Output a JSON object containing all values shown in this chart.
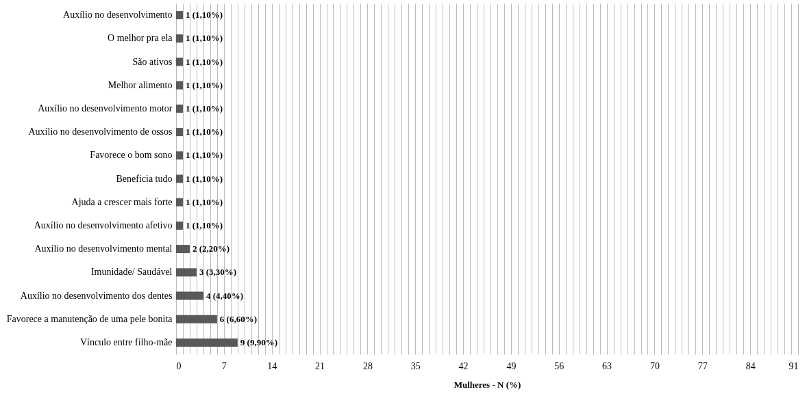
{
  "chart_data": {
    "type": "bar",
    "orientation": "horizontal",
    "xlabel": "Mulheres - N (%)",
    "categories": [
      "Auxílio no desenvolvimento",
      "O melhor pra ela",
      "São ativos",
      "Melhor alimento",
      "Auxílio no desenvolvimento motor",
      "Auxílio no desenvolvimento  de ossos",
      "Favorece o bom sono",
      "Beneficia tudo",
      "Ajuda a crescer mais forte",
      "Auxílio no desenvolvimento  afetivo",
      "Auxílio no desenvolvimento mental",
      "Imunidade/ Saudável",
      "Auxílio no desenvolvimento  dos dentes",
      "Favorece a manutenção  de uma pele bonita",
      "Vínculo entre filho-mãe"
    ],
    "values": [
      1,
      1,
      1,
      1,
      1,
      1,
      1,
      1,
      1,
      1,
      2,
      3,
      4,
      6,
      9
    ],
    "value_labels": [
      "1 (1,10%)",
      "1 (1,10%)",
      "1 (1,10%)",
      "1 (1,10%)",
      "1 (1,10%)",
      "1 (1,10%)",
      "1 (1,10%)",
      "1 (1,10%)",
      "1 (1,10%)",
      "1 (1,10%)",
      "2 (2,20%)",
      "3 (3,30%)",
      "4 (4,40%)",
      "6 (6,60%)",
      "9 (9,90%)"
    ],
    "color": "#595959",
    "xlim": [
      0,
      91
    ],
    "xticks": [
      0,
      {
        "value": 1,
        "label": null
      },
      {
        "value": 2,
        "label": null
      },
      {
        "value": 3,
        "label": null
      },
      {
        "value": 4,
        "label": null
      },
      {
        "value": 5,
        "label": null
      },
      {
        "value": 6,
        "label": null
      },
      7,
      {
        "value": 8,
        "label": null
      },
      {
        "value": 9,
        "label": null
      },
      {
        "value": 10,
        "label": null
      },
      {
        "value": 11,
        "label": null
      },
      {
        "value": 12,
        "label": null
      },
      {
        "value": 13,
        "label": null
      },
      14,
      {
        "value": 15,
        "label": null
      },
      {
        "value": 16,
        "label": null
      },
      {
        "value": 17,
        "label": null
      },
      {
        "value": 18,
        "label": null
      },
      {
        "value": 19,
        "label": null
      },
      {
        "value": 20,
        "label": null
      },
      21,
      {
        "value": 22,
        "label": null
      },
      {
        "value": 23,
        "label": null
      },
      {
        "value": 24,
        "label": null
      },
      {
        "value": 25,
        "label": null
      },
      {
        "value": 26,
        "label": null
      },
      {
        "value": 27,
        "label": null
      },
      28,
      {
        "value": 29,
        "label": null
      },
      {
        "value": 30,
        "label": null
      },
      {
        "value": 31,
        "label": null
      },
      {
        "value": 32,
        "label": null
      },
      {
        "value": 33,
        "label": null
      },
      {
        "value": 34,
        "label": null
      },
      35,
      {
        "value": 36,
        "label": null
      },
      {
        "value": 37,
        "label": null
      },
      {
        "value": 38,
        "label": null
      },
      {
        "value": 39,
        "label": null
      },
      {
        "value": 40,
        "label": null
      },
      {
        "value": 41,
        "label": null
      },
      42,
      {
        "value": 43,
        "label": null
      },
      {
        "value": 44,
        "label": null
      },
      {
        "value": 45,
        "label": null
      },
      {
        "value": 46,
        "label": null
      },
      {
        "value": 47,
        "label": null
      },
      {
        "value": 48,
        "label": null
      },
      49,
      {
        "value": 50,
        "label": null
      },
      {
        "value": 51,
        "label": null
      },
      {
        "value": 52,
        "label": null
      },
      {
        "value": 53,
        "label": null
      },
      {
        "value": 54,
        "label": null
      },
      {
        "value": 55,
        "label": null
      },
      56,
      {
        "value": 57,
        "label": null
      },
      {
        "value": 58,
        "label": null
      },
      {
        "value": 59,
        "label": null
      },
      {
        "value": 60,
        "label": null
      },
      {
        "value": 61,
        "label": null
      },
      {
        "value": 62,
        "label": null
      },
      63,
      {
        "value": 64,
        "label": null
      },
      {
        "value": 65,
        "label": null
      },
      {
        "value": 66,
        "label": null
      },
      {
        "value": 67,
        "label": null
      },
      {
        "value": 68,
        "label": null
      },
      {
        "value": 69,
        "label": null
      },
      70,
      {
        "value": 71,
        "label": null
      },
      {
        "value": 72,
        "label": null
      },
      {
        "value": 73,
        "label": null
      },
      {
        "value": 74,
        "label": null
      },
      {
        "value": 75,
        "label": null
      },
      {
        "value": 76,
        "label": null
      },
      77,
      {
        "value": 78,
        "label": null
      },
      {
        "value": 79,
        "label": null
      },
      {
        "value": 80,
        "label": null
      },
      {
        "value": 81,
        "label": null
      },
      {
        "value": 82,
        "label": null
      },
      {
        "value": 83,
        "label": null
      },
      84,
      {
        "value": 85,
        "label": null
      },
      {
        "value": 86,
        "label": null
      },
      {
        "value": 87,
        "label": null
      },
      {
        "value": 88,
        "label": null
      },
      {
        "value": 89,
        "label": null
      },
      {
        "value": 90,
        "label": null
      },
      91
    ],
    "grid": "x"
  }
}
